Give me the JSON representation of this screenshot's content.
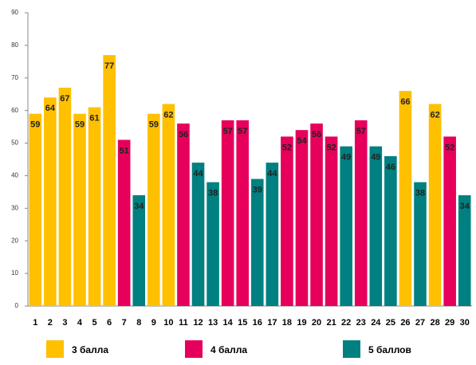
{
  "chart_data": {
    "type": "bar",
    "categories": [
      "1",
      "2",
      "3",
      "4",
      "5",
      "6",
      "7",
      "8",
      "9",
      "10",
      "11",
      "12",
      "13",
      "14",
      "15",
      "16",
      "17",
      "18",
      "19",
      "20",
      "21",
      "22",
      "23",
      "24",
      "25",
      "26",
      "27",
      "28",
      "29",
      "30"
    ],
    "series": [
      {
        "name": "3 балла",
        "color": "#ffc000",
        "values": [
          59,
          64,
          67,
          59,
          61,
          77,
          null,
          null,
          59,
          62,
          null,
          null,
          null,
          null,
          null,
          null,
          null,
          null,
          null,
          null,
          null,
          null,
          null,
          null,
          null,
          66,
          null,
          62,
          null,
          null
        ]
      },
      {
        "name": "4 балла",
        "color": "#e6005c",
        "values": [
          null,
          null,
          null,
          null,
          null,
          null,
          51,
          null,
          null,
          null,
          56,
          null,
          null,
          57,
          57,
          null,
          null,
          52,
          54,
          56,
          52,
          null,
          57,
          null,
          null,
          null,
          null,
          null,
          52,
          null
        ]
      },
      {
        "name": "5 баллов",
        "color": "#008080",
        "values": [
          null,
          null,
          null,
          null,
          null,
          null,
          null,
          34,
          null,
          null,
          null,
          44,
          38,
          null,
          null,
          39,
          44,
          null,
          null,
          null,
          null,
          49,
          null,
          49,
          46,
          null,
          38,
          null,
          null,
          34
        ]
      }
    ],
    "ylim": [
      0,
      90
    ],
    "yticks": [
      0,
      10,
      20,
      30,
      40,
      50,
      60,
      70,
      80,
      90
    ],
    "grid": false
  }
}
